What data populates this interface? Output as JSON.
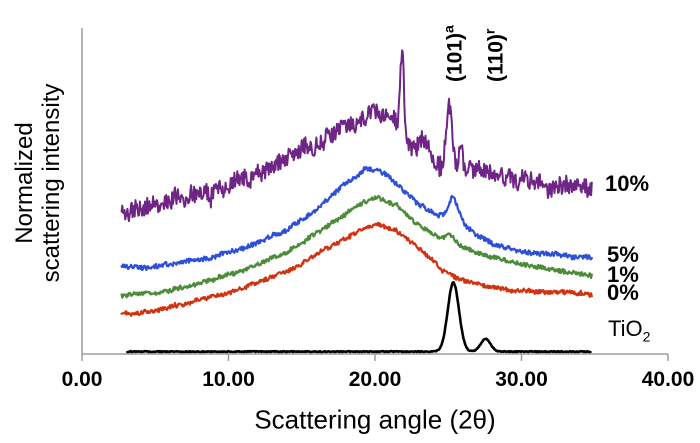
{
  "chart_data": {
    "type": "line",
    "title": "",
    "xlabel": "Scattering angle (2θ)",
    "ylabel": "Normalized scattering intensity",
    "ylabel_lines": [
      "Normalized",
      "scattering intensity"
    ],
    "xlim": [
      0,
      40
    ],
    "grid": false,
    "axis_color": "#9e9e9e",
    "x_ticks": [
      "0.00",
      "10.00",
      "20.00",
      "30.00",
      "40.00"
    ],
    "x_tick_values": [
      0,
      10,
      20,
      30,
      40
    ],
    "annotations": [
      {
        "text": "(101)",
        "sup": "a",
        "x": 25.3
      },
      {
        "text": "(110)",
        "sup": "r",
        "x": 28.1
      }
    ],
    "series": [
      {
        "name": "10%",
        "label": "10%",
        "label_sub": "",
        "color": "#6e2585",
        "line_width": 2,
        "seed": 11,
        "noise": 0.028,
        "lf_noise": 0.013,
        "range": [
          2.7,
          34.8
        ],
        "anchors": [
          [
            2.7,
            0.473
          ],
          [
            4,
            0.487
          ],
          [
            6,
            0.513
          ],
          [
            8,
            0.54
          ],
          [
            10,
            0.57
          ],
          [
            12,
            0.607
          ],
          [
            14,
            0.653
          ],
          [
            16,
            0.707
          ],
          [
            18,
            0.753
          ],
          [
            19.5,
            0.79
          ],
          [
            20.5,
            0.797
          ],
          [
            21.3,
            0.78
          ],
          [
            22,
            0.697
          ],
          [
            23,
            0.68
          ],
          [
            23.8,
            0.653
          ],
          [
            24.5,
            0.62
          ],
          [
            25.5,
            0.62
          ],
          [
            26.3,
            0.613
          ],
          [
            27.5,
            0.613
          ],
          [
            29,
            0.59
          ],
          [
            30.5,
            0.573
          ],
          [
            32,
            0.56
          ],
          [
            33.5,
            0.553
          ],
          [
            34.8,
            0.557
          ]
        ],
        "peaks": [
          {
            "center": 21.85,
            "height": 0.283,
            "sigma": 0.14
          },
          {
            "center": 23.3,
            "height": 0.05,
            "sigma": 0.3
          },
          {
            "center": 25.05,
            "height": 0.213,
            "sigma": 0.2
          },
          {
            "center": 25.85,
            "height": 0.073,
            "sigma": 0.11
          }
        ]
      },
      {
        "name": "5%",
        "label": "5%",
        "label_sub": "",
        "color": "#2d50d7",
        "line_width": 2.2,
        "seed": 21,
        "noise": 0.008,
        "lf_noise": 0.004,
        "range": [
          2.7,
          34.8
        ],
        "anchors": [
          [
            2.7,
            0.293
          ],
          [
            4,
            0.29
          ],
          [
            6,
            0.297
          ],
          [
            8,
            0.313
          ],
          [
            10,
            0.34
          ],
          [
            12,
            0.373
          ],
          [
            14,
            0.413
          ],
          [
            16,
            0.483
          ],
          [
            18,
            0.567
          ],
          [
            19.3,
            0.617
          ],
          [
            20.3,
            0.61
          ],
          [
            21,
            0.59
          ],
          [
            22,
            0.54
          ],
          [
            23,
            0.497
          ],
          [
            24,
            0.467
          ],
          [
            24.8,
            0.453
          ],
          [
            26,
            0.43
          ],
          [
            27,
            0.393
          ],
          [
            28,
            0.367
          ],
          [
            29.5,
            0.347
          ],
          [
            31.5,
            0.333
          ],
          [
            34.8,
            0.32
          ]
        ],
        "peaks": [
          {
            "center": 25.35,
            "height": 0.08,
            "sigma": 0.32
          }
        ]
      },
      {
        "name": "1%",
        "label": "1%",
        "label_sub": "",
        "color": "#4c8b39",
        "line_width": 2.2,
        "seed": 31,
        "noise": 0.007,
        "lf_noise": 0.003,
        "range": [
          2.7,
          34.8
        ],
        "anchors": [
          [
            2.7,
            0.193
          ],
          [
            5,
            0.203
          ],
          [
            8,
            0.237
          ],
          [
            11,
            0.28
          ],
          [
            14,
            0.34
          ],
          [
            17,
            0.433
          ],
          [
            19,
            0.5
          ],
          [
            20.1,
            0.52
          ],
          [
            21.5,
            0.493
          ],
          [
            23,
            0.427
          ],
          [
            24.3,
            0.387
          ],
          [
            26,
            0.357
          ],
          [
            27.5,
            0.33
          ],
          [
            29,
            0.31
          ],
          [
            31,
            0.29
          ],
          [
            33,
            0.273
          ],
          [
            34.8,
            0.26
          ]
        ],
        "peaks": [
          {
            "center": 25.15,
            "height": 0.027,
            "sigma": 0.3
          }
        ]
      },
      {
        "name": "0%",
        "label": "0%",
        "label_sub": "",
        "color": "#d0330f",
        "line_width": 2.2,
        "seed": 41,
        "noise": 0.007,
        "lf_noise": 0.003,
        "range": [
          2.7,
          34.8
        ],
        "anchors": [
          [
            2.7,
            0.133
          ],
          [
            5,
            0.143
          ],
          [
            8,
            0.18
          ],
          [
            11,
            0.22
          ],
          [
            14,
            0.273
          ],
          [
            17,
            0.36
          ],
          [
            19,
            0.413
          ],
          [
            20.1,
            0.433
          ],
          [
            21.5,
            0.407
          ],
          [
            23,
            0.353
          ],
          [
            25,
            0.267
          ],
          [
            26.5,
            0.237
          ],
          [
            28,
            0.22
          ],
          [
            30,
            0.21
          ],
          [
            32,
            0.207
          ],
          [
            34.8,
            0.2
          ]
        ],
        "peaks": []
      },
      {
        "name": "TiO2",
        "label": "TiO",
        "label_sub": "2",
        "color": "#000000",
        "line_width": 2.6,
        "seed": 51,
        "noise": 0.0015,
        "lf_noise": 0,
        "range": [
          3.1,
          34.7
        ],
        "anchors": [
          [
            3.1,
            0.008
          ],
          [
            34.7,
            0.008
          ]
        ],
        "peaks": [
          {
            "center": 25.35,
            "height": 0.23,
            "sigma": 0.38
          },
          {
            "center": 27.55,
            "height": 0.043,
            "sigma": 0.33
          }
        ]
      }
    ]
  }
}
